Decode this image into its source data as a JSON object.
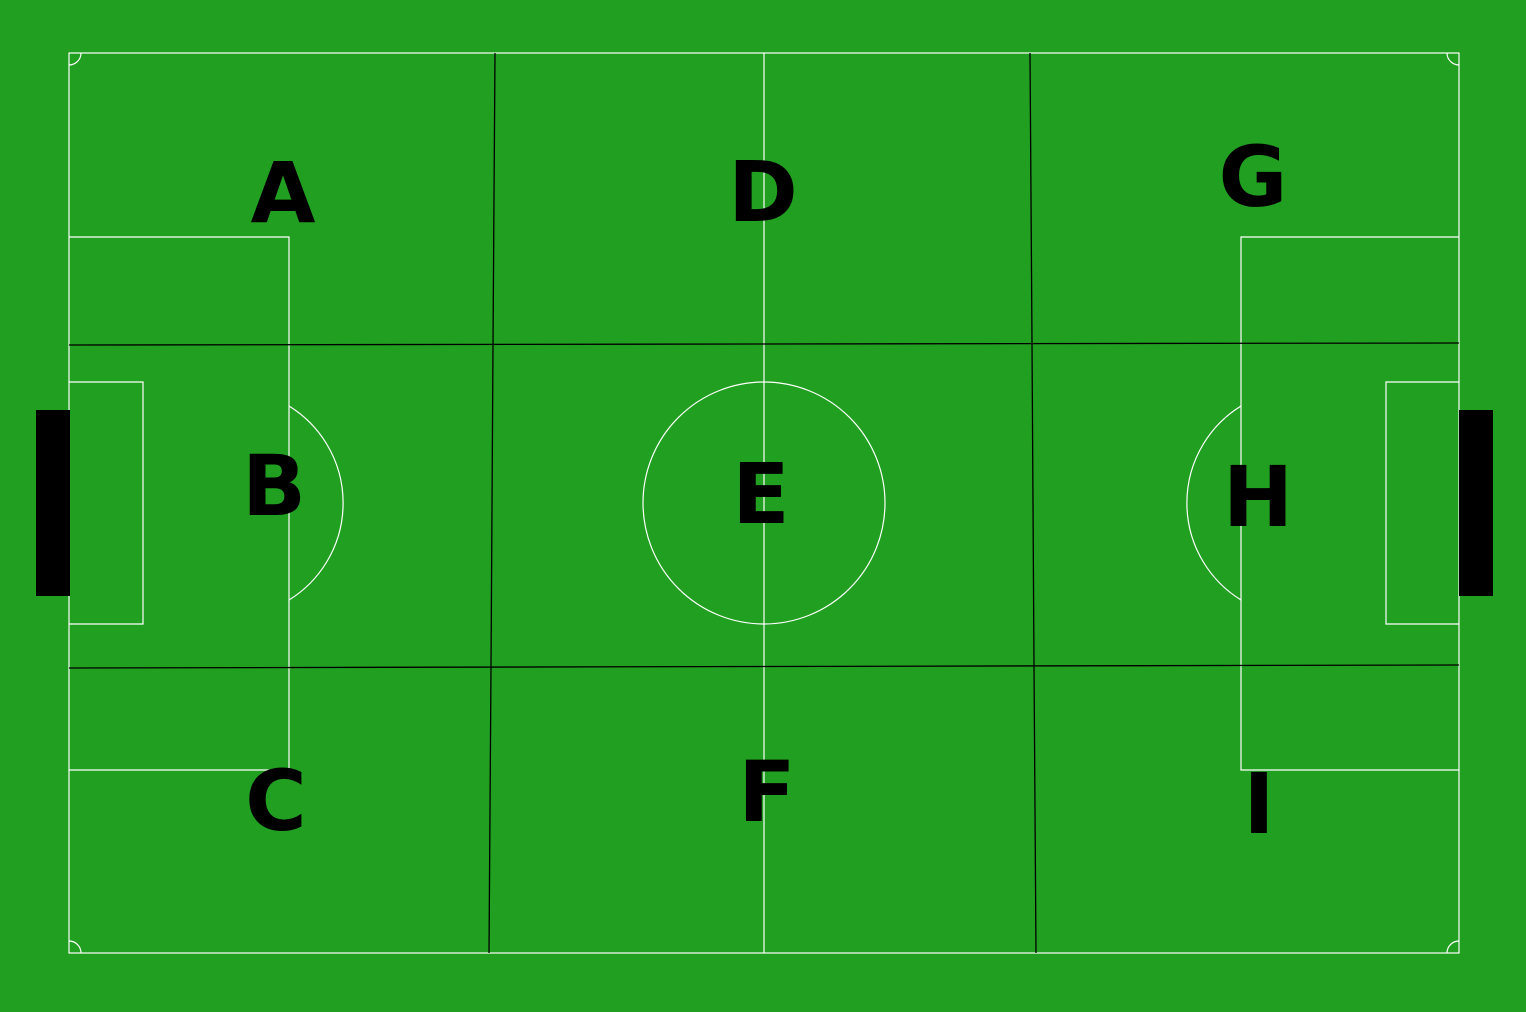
{
  "colors": {
    "grass": "#219f21",
    "line": "#ffffff",
    "grid": "#000000",
    "goal": "#000000",
    "label": "#000000"
  },
  "zones": [
    {
      "label": "A"
    },
    {
      "label": "B"
    },
    {
      "label": "C"
    },
    {
      "label": "D"
    },
    {
      "label": "E"
    },
    {
      "label": "F"
    },
    {
      "label": "G"
    },
    {
      "label": "H"
    },
    {
      "label": "I"
    }
  ]
}
